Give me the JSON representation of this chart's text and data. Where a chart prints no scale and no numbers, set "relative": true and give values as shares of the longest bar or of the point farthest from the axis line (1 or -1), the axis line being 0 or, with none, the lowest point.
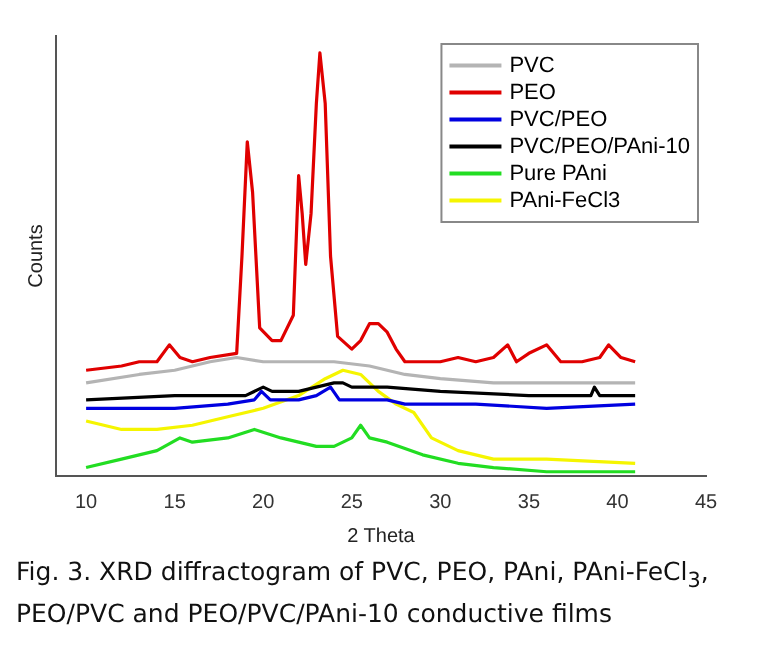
{
  "chart_data": {
    "type": "line",
    "xlabel": "2 Theta",
    "ylabel": "Counts",
    "relative": true,
    "xlim": [
      8.3,
      45
    ],
    "xticks": [
      10,
      15,
      20,
      25,
      30,
      35,
      40,
      45
    ],
    "grid": false,
    "legend": "top right",
    "marker": "none",
    "line_style": "solid",
    "annotations": [
      "Fig. 3. XRD diffractogram of PVC, PEO, PAni, PAni-FeCl$_{3}$, PEO/PVC and PEO/PVC/PAni-10 conductive films"
    ],
    "series": [
      {
        "name": "PVC",
        "color": "#b4b4b4",
        "x": [
          10,
          13,
          15,
          17,
          18.5,
          20,
          22,
          24,
          26,
          28,
          30,
          33,
          36,
          41
        ],
        "values": [
          0.22,
          0.24,
          0.25,
          0.27,
          0.28,
          0.27,
          0.27,
          0.27,
          0.26,
          0.24,
          0.23,
          0.22,
          0.22,
          0.22
        ]
      },
      {
        "name": "PEO",
        "color": "#e00000",
        "x": [
          10,
          12,
          13,
          14,
          14.7,
          15.3,
          16,
          17,
          18.5,
          18.8,
          19.1,
          19.4,
          19.8,
          20.5,
          21,
          21.7,
          22,
          22.2,
          22.4,
          22.7,
          23,
          23.2,
          23.5,
          23.8,
          24.2,
          25,
          25.5,
          26,
          26.5,
          27,
          27.5,
          28,
          30,
          31,
          32,
          33,
          33.8,
          34.3,
          35,
          36,
          36.8,
          38,
          39,
          39.5,
          40.2,
          41
        ],
        "values": [
          0.25,
          0.26,
          0.27,
          0.27,
          0.31,
          0.28,
          0.27,
          0.28,
          0.29,
          0.52,
          0.79,
          0.67,
          0.35,
          0.32,
          0.32,
          0.38,
          0.71,
          0.62,
          0.5,
          0.62,
          0.88,
          1,
          0.88,
          0.52,
          0.33,
          0.3,
          0.32,
          0.36,
          0.36,
          0.34,
          0.3,
          0.27,
          0.27,
          0.28,
          0.27,
          0.28,
          0.31,
          0.27,
          0.29,
          0.31,
          0.27,
          0.27,
          0.28,
          0.31,
          0.28,
          0.27
        ]
      },
      {
        "name": "PVC/PEO",
        "color": "#0000e0",
        "x": [
          10,
          15,
          18,
          19.5,
          19.9,
          20.4,
          22,
          23,
          23.8,
          24.3,
          25,
          27,
          28,
          32,
          36,
          41
        ],
        "values": [
          0.16,
          0.16,
          0.17,
          0.18,
          0.2,
          0.18,
          0.18,
          0.19,
          0.21,
          0.18,
          0.18,
          0.18,
          0.17,
          0.17,
          0.16,
          0.17
        ]
      },
      {
        "name": "PVC/PEO/PAni-10",
        "color": "#000000",
        "x": [
          10,
          15,
          19,
          20,
          20.5,
          22,
          24,
          24.5,
          25,
          27,
          30,
          35,
          38.5,
          38.7,
          39,
          41
        ],
        "values": [
          0.18,
          0.19,
          0.19,
          0.21,
          0.2,
          0.2,
          0.22,
          0.22,
          0.21,
          0.21,
          0.2,
          0.19,
          0.19,
          0.21,
          0.19,
          0.19
        ]
      },
      {
        "name": "Pure PAni",
        "color": "#22dd22",
        "x": [
          10,
          12,
          14,
          15.3,
          16,
          18,
          19.5,
          21,
          22,
          23,
          24,
          25,
          25.5,
          26,
          27,
          29,
          31,
          33,
          36,
          41
        ],
        "values": [
          0.02,
          0.04,
          0.06,
          0.09,
          0.08,
          0.09,
          0.11,
          0.09,
          0.08,
          0.07,
          0.07,
          0.09,
          0.12,
          0.09,
          0.08,
          0.05,
          0.03,
          0.02,
          0.01,
          0.01
        ]
      },
      {
        "name": "PAni-FeCl3",
        "color": "#f5f500",
        "x": [
          10,
          12,
          14,
          16,
          18,
          20,
          22,
          23.5,
          24.5,
          25.5,
          26.5,
          27.5,
          28.5,
          29.5,
          31,
          33,
          36,
          41
        ],
        "values": [
          0.13,
          0.11,
          0.11,
          0.12,
          0.14,
          0.16,
          0.19,
          0.23,
          0.25,
          0.24,
          0.2,
          0.17,
          0.15,
          0.09,
          0.06,
          0.04,
          0.04,
          0.03
        ]
      }
    ]
  }
}
